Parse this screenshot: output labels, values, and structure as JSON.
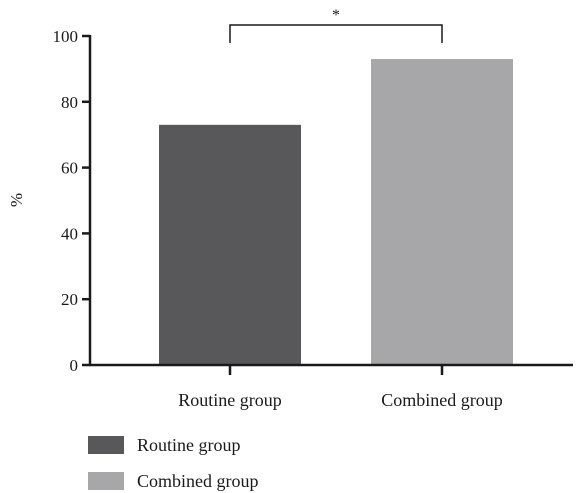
{
  "chart_data": {
    "type": "bar",
    "title": "",
    "xlabel": "",
    "ylabel": "%",
    "ylim": [
      0,
      100
    ],
    "yticks": [
      0,
      20,
      40,
      60,
      80,
      100
    ],
    "categories": [
      "Routine group",
      "Combined group"
    ],
    "values": [
      73,
      93
    ],
    "colors": [
      "#58585a",
      "#a7a7a9"
    ],
    "legend": {
      "placement": "bottom-left",
      "entries": [
        {
          "label": "Routine group",
          "color": "#58585a"
        },
        {
          "label": "Combined group",
          "color": "#a7a7a9"
        }
      ]
    },
    "significance": {
      "label": "*",
      "between": [
        "Routine group",
        "Combined group"
      ]
    },
    "grid": false
  }
}
